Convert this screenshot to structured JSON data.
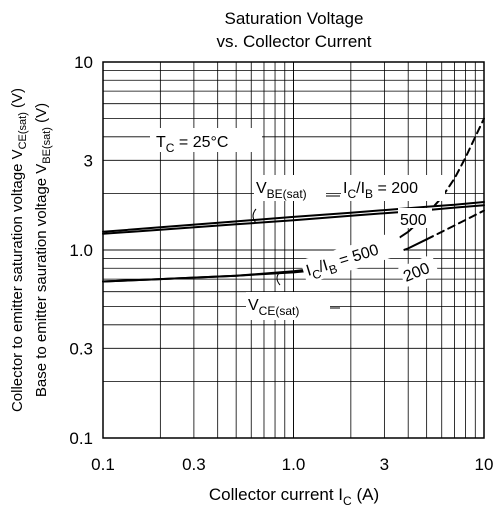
{
  "chart_data": {
    "type": "line",
    "title": [
      "Saturation Voltage",
      "vs. Collector Current"
    ],
    "x_scale": "log",
    "y_scale": "log",
    "xlim": [
      0.1,
      10
    ],
    "ylim": [
      0.1,
      10
    ],
    "x_ticks": [
      {
        "v": 0.1,
        "label": "0.1"
      },
      {
        "v": 0.3,
        "label": "0.3"
      },
      {
        "v": 1,
        "label": "1.0"
      },
      {
        "v": 3,
        "label": "3"
      },
      {
        "v": 10,
        "label": "10"
      }
    ],
    "y_ticks": [
      {
        "v": 0.1,
        "label": "0.1"
      },
      {
        "v": 0.3,
        "label": "0.3"
      },
      {
        "v": 1,
        "label": "1.0"
      },
      {
        "v": 3,
        "label": "3"
      },
      {
        "v": 10,
        "label": "10"
      }
    ],
    "xlabel": {
      "main": "Collector current  I",
      "sub": "C",
      "unit": "  (A)"
    },
    "ylabel": {
      "line1_main": "Collector to emitter saturation voltage  V",
      "line1_sub": "CE(sat)",
      "line1_unit": "  (V)",
      "line2_main": "Base to emitter sauration voltage  V",
      "line2_sub": "BE(sat)",
      "line2_unit": "  (V)"
    },
    "grid": true,
    "series": [
      {
        "name": "VBE(sat) IC/IB = 200",
        "style": "solid",
        "x": [
          0.1,
          0.2,
          0.5,
          1,
          2,
          3,
          5,
          7,
          10
        ],
        "y": [
          1.25,
          1.32,
          1.42,
          1.5,
          1.58,
          1.63,
          1.7,
          1.74,
          1.8
        ]
      },
      {
        "name": "VBE(sat) IC/IB = 500",
        "style": "solid",
        "x": [
          0.1,
          0.2,
          0.5,
          1,
          2,
          3,
          5,
          7,
          10
        ],
        "y": [
          1.22,
          1.28,
          1.37,
          1.44,
          1.52,
          1.57,
          1.63,
          1.68,
          1.73
        ]
      },
      {
        "name": "VCE(sat) IC/IB = 500",
        "style": "solid",
        "x": [
          0.1,
          0.2,
          0.5,
          1,
          1.5,
          2,
          3,
          4,
          5
        ],
        "y": [
          0.68,
          0.7,
          0.73,
          0.77,
          0.81,
          0.87,
          1.03,
          1.25,
          1.55
        ]
      },
      {
        "name": "VCE(sat) IC/IB = 500 (extension)",
        "style": "dashed",
        "x": [
          5,
          6,
          7,
          8,
          9,
          10
        ],
        "y": [
          1.55,
          1.9,
          2.4,
          3.1,
          4.0,
          5.0
        ]
      },
      {
        "name": "VCE(sat) IC/IB = 200",
        "style": "solid",
        "x": [
          0.1,
          0.2,
          0.5,
          1,
          1.5,
          2,
          3,
          4,
          5
        ],
        "y": [
          0.68,
          0.7,
          0.73,
          0.76,
          0.79,
          0.83,
          0.92,
          1.02,
          1.14
        ]
      },
      {
        "name": "VCE(sat) IC/IB = 200 (extension)",
        "style": "dashed",
        "x": [
          5,
          7,
          10
        ],
        "y": [
          1.14,
          1.35,
          1.62
        ]
      }
    ],
    "annotations": {
      "tc_main": "T",
      "tc_sub": "C",
      "tc_rest": " = 25°C",
      "vbe_main": "V",
      "vbe_sub": "BE(sat)",
      "ratio_i1": "I",
      "ratio_c": "C",
      "ratio_slash": "/I",
      "ratio_b": "B",
      "ratio_200": " = 200",
      "ratio_500": " = 500",
      "label_500": "500",
      "label_200": "200",
      "vce_main": "V",
      "vce_sub": "CE(sat)"
    }
  }
}
